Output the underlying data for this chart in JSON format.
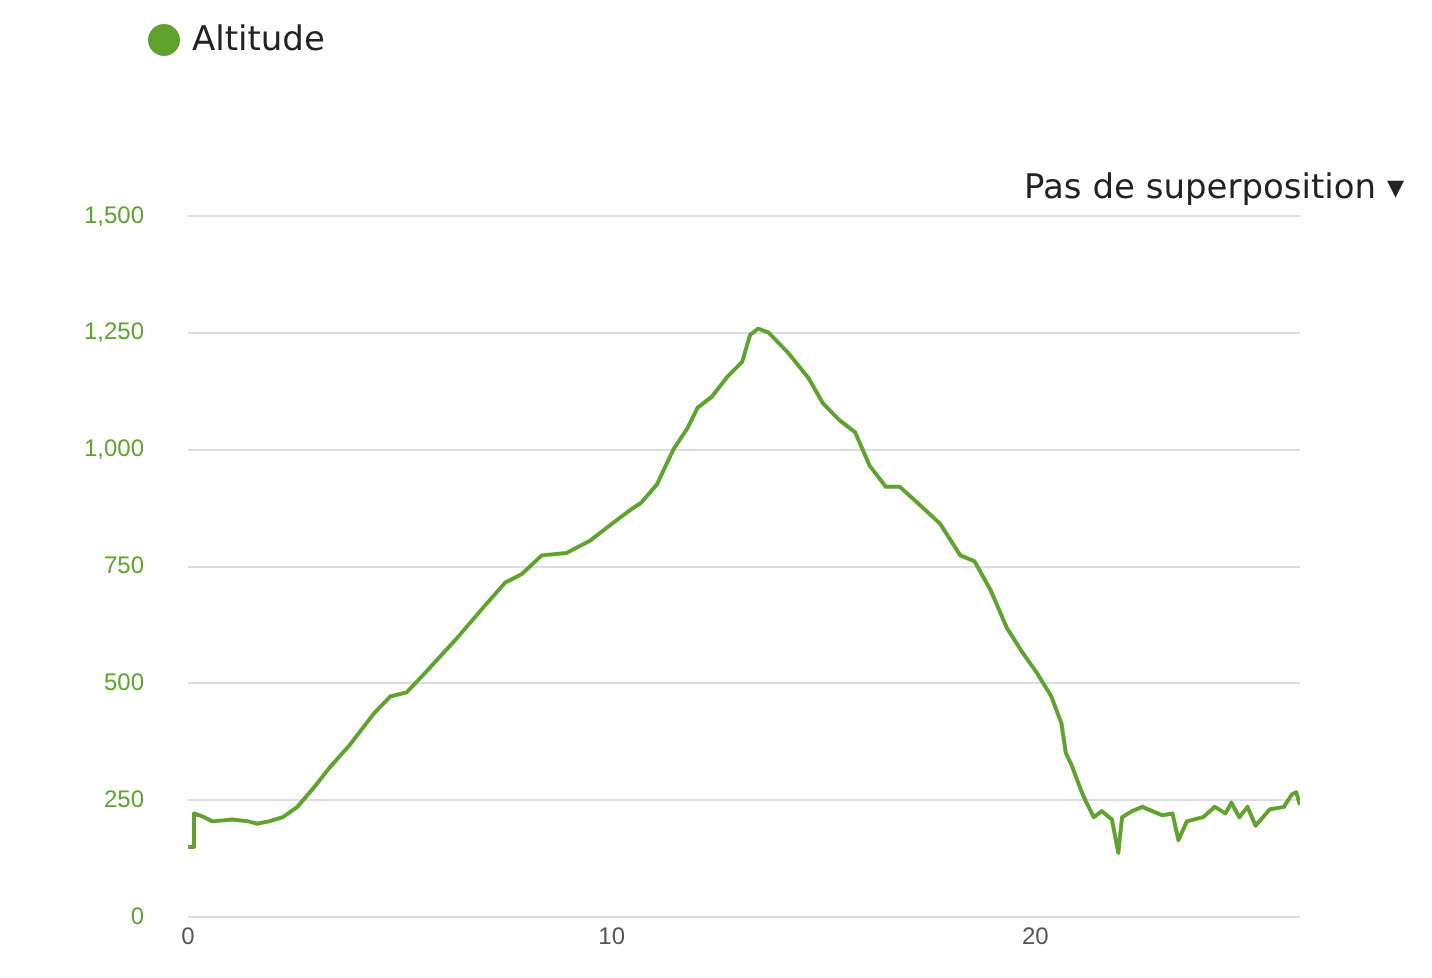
{
  "chart_data": {
    "type": "line",
    "x": [
      0,
      0.14,
      0.14,
      0.38,
      0.57,
      1.05,
      1.43,
      1.62,
      1.91,
      2.24,
      2.58,
      2.96,
      3.34,
      3.82,
      4.39,
      4.77,
      5.16,
      5.58,
      6.3,
      7.02,
      7.49,
      7.88,
      8.35,
      8.93,
      9.5,
      10.07,
      10.45,
      10.69,
      11.07,
      11.46,
      11.79,
      12.03,
      12.36,
      12.74,
      13.08,
      13.27,
      13.46,
      13.7,
      14.18,
      14.65,
      14.99,
      15.37,
      15.75,
      16.09,
      16.47,
      16.8,
      17.18,
      17.76,
      18.23,
      18.57,
      18.95,
      19.33,
      19.67,
      20.05,
      20.38,
      20.62,
      20.72,
      20.86,
      21.1,
      21.19,
      21.38,
      21.57,
      21.81,
      21.96,
      22.05,
      22.29,
      22.53,
      23,
      23.24,
      23.38,
      23.58,
      23.96,
      24.24,
      24.49,
      24.63,
      24.82,
      25.01,
      25.2,
      25.54,
      25.87,
      26.06,
      26.16,
      26.25
    ],
    "series": [
      {
        "name": "Altitude",
        "color": "#5fa32e",
        "values": [
          150,
          150,
          222,
          214,
          205,
          209,
          205,
          200,
          205,
          214,
          236,
          276,
          320,
          369,
          436,
          472,
          481,
          521,
          592,
          668,
          716,
          734,
          774,
          779,
          806,
          846,
          872,
          886,
          926,
          1001,
          1046,
          1090,
          1113,
          1157,
          1188,
          1246,
          1259,
          1251,
          1206,
          1153,
          1099,
          1064,
          1037,
          966,
          921,
          921,
          890,
          841,
          774,
          761,
          699,
          619,
          570,
          521,
          472,
          414,
          352,
          325,
          267,
          249,
          214,
          227,
          209,
          138,
          214,
          227,
          236,
          218,
          222,
          165,
          205,
          214,
          236,
          222,
          245,
          214,
          236,
          196,
          231,
          236,
          263,
          267,
          240
        ]
      }
    ],
    "xlim": [
      0,
      26.25
    ],
    "xticks": [
      0,
      10,
      20
    ],
    "ylim": [
      0,
      1500
    ],
    "yticks": [
      0,
      {
        "value": 250,
        "label": "250"
      },
      {
        "value": 500,
        "label": "500"
      },
      {
        "value": 750,
        "label": "750"
      },
      {
        "value": 1000,
        "label": "1,000"
      },
      {
        "value": 1250,
        "label": "1,250"
      },
      {
        "value": 1500,
        "label": "1,500"
      }
    ],
    "grid": "y",
    "legend": "top left",
    "marker": "none",
    "line_style": "solid",
    "annotations": [
      "Pas de superposition ▾"
    ]
  }
}
